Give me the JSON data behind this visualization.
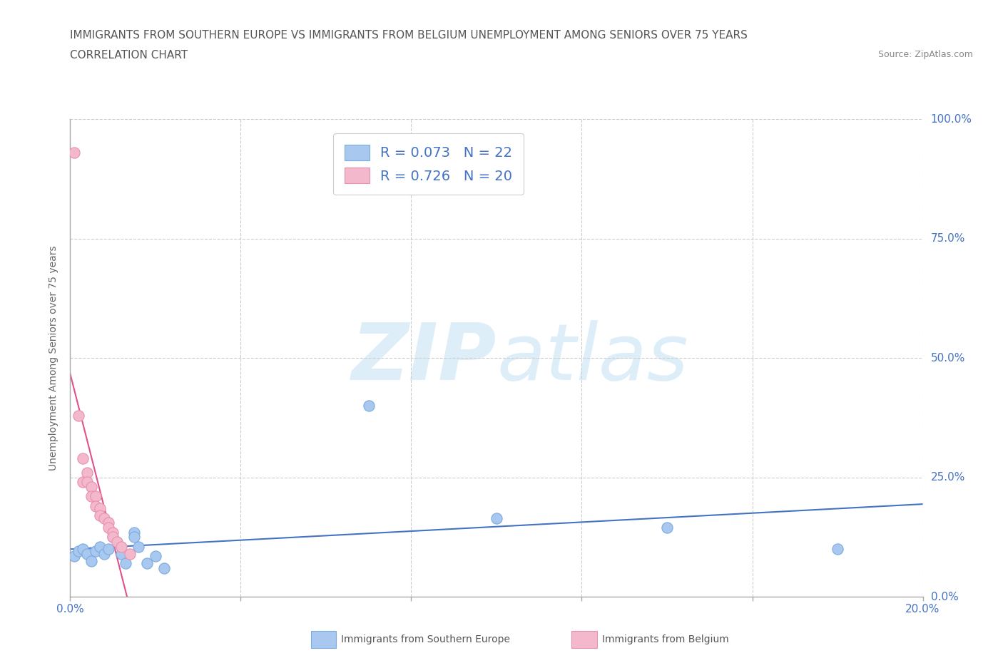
{
  "title_line1": "IMMIGRANTS FROM SOUTHERN EUROPE VS IMMIGRANTS FROM BELGIUM UNEMPLOYMENT AMONG SENIORS OVER 75 YEARS",
  "title_line2": "CORRELATION CHART",
  "source_text": "Source: ZipAtlas.com",
  "ylabel": "Unemployment Among Seniors over 75 years",
  "xlim": [
    0.0,
    0.2
  ],
  "ylim": [
    0.0,
    1.0
  ],
  "xticks": [
    0.0,
    0.04,
    0.08,
    0.12,
    0.16,
    0.2
  ],
  "yticks": [
    0.0,
    0.25,
    0.5,
    0.75,
    1.0
  ],
  "blue_color": "#a8c8f0",
  "blue_edge_color": "#7aabdf",
  "pink_color": "#f4b8cc",
  "pink_edge_color": "#e890aa",
  "blue_line_color": "#4472c4",
  "pink_line_color": "#e0508a",
  "pink_dash_color": "#cccccc",
  "axis_label_color": "#4472c4",
  "title_color": "#555555",
  "source_color": "#888888",
  "grid_color": "#cccccc",
  "R_blue": 0.073,
  "N_blue": 22,
  "R_pink": 0.726,
  "N_pink": 20,
  "blue_x": [
    0.001,
    0.002,
    0.003,
    0.004,
    0.005,
    0.006,
    0.007,
    0.008,
    0.009,
    0.01,
    0.012,
    0.013,
    0.015,
    0.015,
    0.016,
    0.018,
    0.02,
    0.022,
    0.07,
    0.1,
    0.14,
    0.18
  ],
  "blue_y": [
    0.085,
    0.095,
    0.1,
    0.09,
    0.075,
    0.095,
    0.105,
    0.09,
    0.1,
    0.125,
    0.09,
    0.07,
    0.135,
    0.125,
    0.105,
    0.07,
    0.085,
    0.06,
    0.4,
    0.165,
    0.145,
    0.1
  ],
  "pink_x": [
    0.001,
    0.002,
    0.003,
    0.003,
    0.004,
    0.004,
    0.005,
    0.005,
    0.006,
    0.006,
    0.007,
    0.007,
    0.008,
    0.009,
    0.009,
    0.01,
    0.01,
    0.011,
    0.012,
    0.014
  ],
  "pink_y": [
    0.93,
    0.38,
    0.29,
    0.24,
    0.26,
    0.24,
    0.23,
    0.21,
    0.21,
    0.19,
    0.185,
    0.17,
    0.165,
    0.155,
    0.145,
    0.135,
    0.125,
    0.115,
    0.105,
    0.09
  ]
}
